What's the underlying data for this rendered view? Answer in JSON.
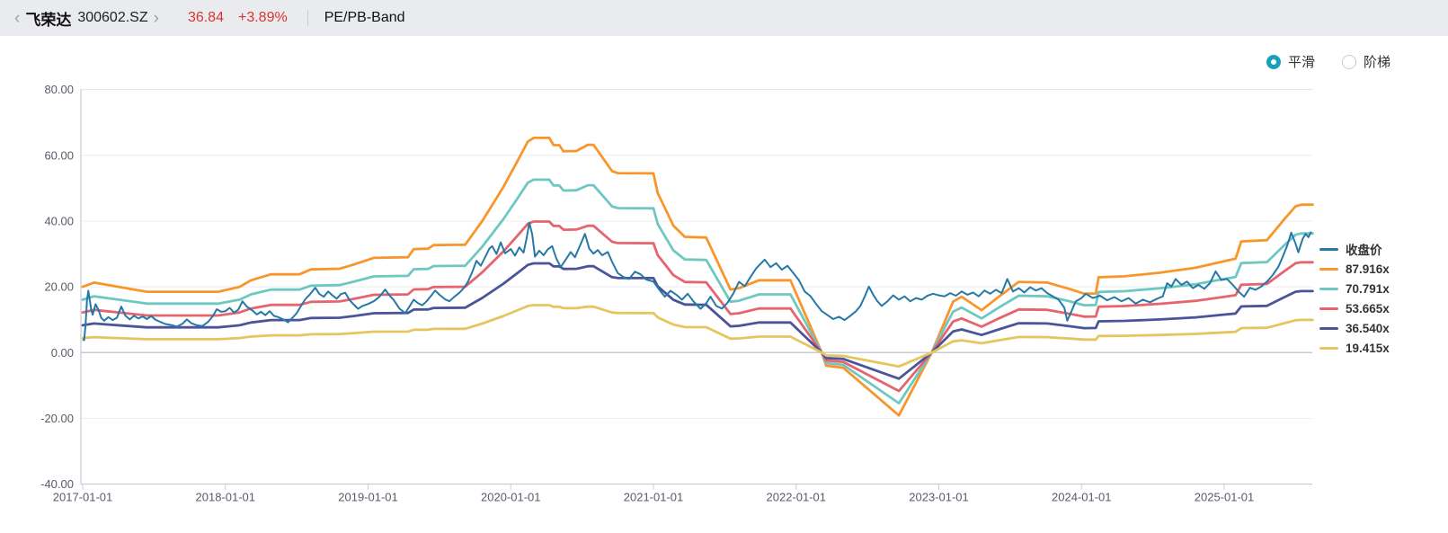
{
  "header": {
    "back_chevron": "‹",
    "stock_name": "飞荣达",
    "stock_code": "300602.SZ",
    "forward_chevron": "›",
    "price": "36.84",
    "change": "+3.89%",
    "view_title": "PE/PB-Band"
  },
  "controls": {
    "accent_color": "#17a2b8",
    "options": [
      {
        "label": "平滑",
        "selected": true
      },
      {
        "label": "阶梯",
        "selected": false
      }
    ]
  },
  "chart_data": {
    "type": "line",
    "title": "PE/PB-Band",
    "grid": true,
    "legend_position": "right",
    "x_axis": {
      "ticks": [
        "2017-01-01",
        "2018-01-01",
        "2019-01-01",
        "2020-01-01",
        "2021-01-01",
        "2022-01-01",
        "2023-01-01",
        "2024-01-01",
        "2025-01-01"
      ],
      "range_years": [
        2017.0,
        2025.65
      ]
    },
    "y_axis": {
      "tick_labels": [
        "80.00",
        "60.00",
        "40.00",
        "20.00",
        "0.00",
        "-20.00",
        "-40.00"
      ],
      "tick_values": [
        80,
        60,
        40,
        20,
        0,
        -20,
        -40
      ],
      "range": [
        -40,
        80
      ]
    },
    "legend": [
      {
        "label": "收盘价",
        "color": "#2679a6"
      },
      {
        "label": "87.916x",
        "color": "#f9962b"
      },
      {
        "label": "70.791x",
        "color": "#6ec8c2"
      },
      {
        "label": "53.665x",
        "color": "#e5646e"
      },
      {
        "label": "36.540x",
        "color": "#4a5499"
      },
      {
        "label": "19.415x",
        "color": "#e5c65e"
      }
    ],
    "pe_bands": {
      "proportional_to_top": true,
      "multiples": [
        87.916,
        70.791,
        53.665,
        36.54,
        19.415
      ],
      "colors": [
        "#f9962b",
        "#6ec8c2",
        "#e5646e",
        "#4a5499",
        "#e5c65e"
      ],
      "top_band_points": [
        [
          2017.0,
          20.0
        ],
        [
          2017.08,
          21.3
        ],
        [
          2017.17,
          20.6
        ],
        [
          2017.45,
          18.5
        ],
        [
          2017.95,
          18.5
        ],
        [
          2018.1,
          20.0
        ],
        [
          2018.18,
          22.0
        ],
        [
          2018.32,
          23.8
        ],
        [
          2018.52,
          23.8
        ],
        [
          2018.6,
          25.3
        ],
        [
          2018.8,
          25.5
        ],
        [
          2018.9,
          26.8
        ],
        [
          2019.04,
          28.8
        ],
        [
          2019.28,
          29.0
        ],
        [
          2019.32,
          31.5
        ],
        [
          2019.42,
          31.6
        ],
        [
          2019.46,
          32.7
        ],
        [
          2019.68,
          32.8
        ],
        [
          2019.8,
          40.0
        ],
        [
          2019.95,
          50.5
        ],
        [
          2020.05,
          58.5
        ],
        [
          2020.12,
          64.2
        ],
        [
          2020.16,
          65.3
        ],
        [
          2020.27,
          65.3
        ],
        [
          2020.3,
          63.1
        ],
        [
          2020.34,
          63.1
        ],
        [
          2020.37,
          61.2
        ],
        [
          2020.46,
          61.3
        ],
        [
          2020.54,
          63.2
        ],
        [
          2020.58,
          63.2
        ],
        [
          2020.71,
          55.2
        ],
        [
          2020.75,
          54.6
        ],
        [
          2021.0,
          54.5
        ],
        [
          2021.03,
          48.5
        ],
        [
          2021.08,
          44.0
        ],
        [
          2021.14,
          38.6
        ],
        [
          2021.22,
          35.2
        ],
        [
          2021.37,
          35.0
        ],
        [
          2021.54,
          19.2
        ],
        [
          2021.6,
          19.6
        ],
        [
          2021.74,
          22.0
        ],
        [
          2021.96,
          22.0
        ],
        [
          2022.18,
          0.0
        ],
        [
          2022.21,
          -4.0
        ],
        [
          2022.33,
          -4.6
        ],
        [
          2022.72,
          -19.1
        ],
        [
          2022.95,
          0.0
        ],
        [
          2023.1,
          15.5
        ],
        [
          2023.16,
          17.0
        ],
        [
          2023.3,
          12.9
        ],
        [
          2023.42,
          17.0
        ],
        [
          2023.56,
          21.5
        ],
        [
          2023.76,
          21.3
        ],
        [
          2023.92,
          19.3
        ],
        [
          2024.02,
          17.9
        ],
        [
          2024.1,
          18.0
        ],
        [
          2024.12,
          22.9
        ],
        [
          2024.3,
          23.2
        ],
        [
          2024.55,
          24.3
        ],
        [
          2024.8,
          25.8
        ],
        [
          2025.0,
          27.8
        ],
        [
          2025.08,
          28.6
        ],
        [
          2025.12,
          33.8
        ],
        [
          2025.3,
          34.2
        ],
        [
          2025.42,
          40.5
        ],
        [
          2025.5,
          44.5
        ],
        [
          2025.54,
          45.0
        ],
        [
          2025.62,
          45.0
        ]
      ]
    },
    "price_series": {
      "name": "收盘价",
      "color": "#2679a6",
      "last_price": 36.84,
      "points": [
        [
          2017.0,
          4.0
        ],
        [
          2017.01,
          3.8
        ],
        [
          2017.02,
          8.5
        ],
        [
          2017.03,
          16.0
        ],
        [
          2017.04,
          18.8
        ],
        [
          2017.06,
          13.0
        ],
        [
          2017.07,
          11.5
        ],
        [
          2017.09,
          14.7
        ],
        [
          2017.11,
          13.0
        ],
        [
          2017.13,
          10.6
        ],
        [
          2017.15,
          9.7
        ],
        [
          2017.18,
          10.8
        ],
        [
          2017.21,
          9.9
        ],
        [
          2017.24,
          10.6
        ],
        [
          2017.27,
          14.0
        ],
        [
          2017.3,
          11.2
        ],
        [
          2017.33,
          10.1
        ],
        [
          2017.36,
          11.2
        ],
        [
          2017.39,
          10.4
        ],
        [
          2017.42,
          11.0
        ],
        [
          2017.45,
          10.2
        ],
        [
          2017.48,
          11.1
        ],
        [
          2017.51,
          10.0
        ],
        [
          2017.54,
          9.4
        ],
        [
          2017.58,
          8.7
        ],
        [
          2017.62,
          8.4
        ],
        [
          2017.66,
          7.9
        ],
        [
          2017.7,
          8.8
        ],
        [
          2017.73,
          10.1
        ],
        [
          2017.76,
          9.0
        ],
        [
          2017.8,
          8.3
        ],
        [
          2017.84,
          8.1
        ],
        [
          2017.88,
          9.4
        ],
        [
          2017.91,
          11.0
        ],
        [
          2017.94,
          13.2
        ],
        [
          2017.97,
          12.4
        ],
        [
          2018.0,
          12.6
        ],
        [
          2018.03,
          13.6
        ],
        [
          2018.06,
          12.2
        ],
        [
          2018.09,
          13.0
        ],
        [
          2018.12,
          15.6
        ],
        [
          2018.15,
          14.0
        ],
        [
          2018.19,
          12.8
        ],
        [
          2018.22,
          11.6
        ],
        [
          2018.25,
          12.4
        ],
        [
          2018.28,
          11.4
        ],
        [
          2018.31,
          12.6
        ],
        [
          2018.34,
          11.2
        ],
        [
          2018.37,
          10.8
        ],
        [
          2018.41,
          10.0
        ],
        [
          2018.44,
          9.2
        ],
        [
          2018.47,
          10.6
        ],
        [
          2018.5,
          12.0
        ],
        [
          2018.53,
          14.2
        ],
        [
          2018.56,
          16.2
        ],
        [
          2018.59,
          17.6
        ],
        [
          2018.63,
          19.7
        ],
        [
          2018.66,
          17.8
        ],
        [
          2018.69,
          17.0
        ],
        [
          2018.72,
          18.6
        ],
        [
          2018.75,
          17.4
        ],
        [
          2018.78,
          16.4
        ],
        [
          2018.81,
          17.8
        ],
        [
          2018.84,
          18.2
        ],
        [
          2018.87,
          16.0
        ],
        [
          2018.9,
          14.6
        ],
        [
          2018.93,
          13.3
        ],
        [
          2018.96,
          14.2
        ],
        [
          2019.0,
          14.8
        ],
        [
          2019.04,
          15.6
        ],
        [
          2019.08,
          17.0
        ],
        [
          2019.12,
          19.2
        ],
        [
          2019.15,
          17.4
        ],
        [
          2019.18,
          16.0
        ],
        [
          2019.22,
          13.4
        ],
        [
          2019.26,
          12.0
        ],
        [
          2019.29,
          14.0
        ],
        [
          2019.32,
          16.1
        ],
        [
          2019.35,
          15.0
        ],
        [
          2019.38,
          14.4
        ],
        [
          2019.41,
          15.6
        ],
        [
          2019.44,
          17.2
        ],
        [
          2019.47,
          18.9
        ],
        [
          2019.5,
          17.6
        ],
        [
          2019.54,
          16.2
        ],
        [
          2019.57,
          15.6
        ],
        [
          2019.6,
          16.8
        ],
        [
          2019.64,
          18.2
        ],
        [
          2019.67,
          19.6
        ],
        [
          2019.7,
          21.5
        ],
        [
          2019.73,
          24.5
        ],
        [
          2019.76,
          27.9
        ],
        [
          2019.79,
          26.4
        ],
        [
          2019.82,
          29.0
        ],
        [
          2019.85,
          31.6
        ],
        [
          2019.87,
          32.4
        ],
        [
          2019.9,
          30.0
        ],
        [
          2019.93,
          33.5
        ],
        [
          2019.96,
          30.2
        ],
        [
          2020.0,
          31.5
        ],
        [
          2020.03,
          29.5
        ],
        [
          2020.06,
          32.0
        ],
        [
          2020.09,
          30.4
        ],
        [
          2020.11,
          34.5
        ],
        [
          2020.13,
          39.5
        ],
        [
          2020.15,
          36.0
        ],
        [
          2020.17,
          29.2
        ],
        [
          2020.2,
          31.0
        ],
        [
          2020.23,
          29.6
        ],
        [
          2020.26,
          31.4
        ],
        [
          2020.29,
          32.4
        ],
        [
          2020.32,
          28.6
        ],
        [
          2020.35,
          26.0
        ],
        [
          2020.39,
          28.6
        ],
        [
          2020.42,
          30.6
        ],
        [
          2020.45,
          29.0
        ],
        [
          2020.49,
          33.0
        ],
        [
          2020.52,
          36.1
        ],
        [
          2020.55,
          31.6
        ],
        [
          2020.58,
          30.1
        ],
        [
          2020.61,
          31.2
        ],
        [
          2020.64,
          29.6
        ],
        [
          2020.68,
          30.6
        ],
        [
          2020.71,
          27.6
        ],
        [
          2020.75,
          24.2
        ],
        [
          2020.79,
          23.0
        ],
        [
          2020.83,
          22.4
        ],
        [
          2020.87,
          24.6
        ],
        [
          2020.91,
          23.8
        ],
        [
          2020.95,
          22.2
        ],
        [
          2021.0,
          21.6
        ],
        [
          2021.04,
          19.2
        ],
        [
          2021.08,
          17.0
        ],
        [
          2021.12,
          18.8
        ],
        [
          2021.16,
          17.6
        ],
        [
          2021.2,
          16.1
        ],
        [
          2021.24,
          17.9
        ],
        [
          2021.28,
          15.6
        ],
        [
          2021.33,
          13.3
        ],
        [
          2021.37,
          15.0
        ],
        [
          2021.4,
          17.0
        ],
        [
          2021.44,
          14.2
        ],
        [
          2021.48,
          13.4
        ],
        [
          2021.52,
          15.2
        ],
        [
          2021.56,
          18.0
        ],
        [
          2021.6,
          21.5
        ],
        [
          2021.64,
          20.2
        ],
        [
          2021.68,
          23.0
        ],
        [
          2021.72,
          25.6
        ],
        [
          2021.78,
          28.3
        ],
        [
          2021.82,
          26.0
        ],
        [
          2021.86,
          27.2
        ],
        [
          2021.9,
          25.2
        ],
        [
          2021.94,
          26.4
        ],
        [
          2021.98,
          24.2
        ],
        [
          2022.02,
          22.0
        ],
        [
          2022.06,
          18.6
        ],
        [
          2022.1,
          17.2
        ],
        [
          2022.14,
          14.8
        ],
        [
          2022.18,
          12.6
        ],
        [
          2022.22,
          11.4
        ],
        [
          2022.26,
          10.2
        ],
        [
          2022.3,
          10.9
        ],
        [
          2022.34,
          9.9
        ],
        [
          2022.38,
          11.2
        ],
        [
          2022.42,
          12.6
        ],
        [
          2022.45,
          14.2
        ],
        [
          2022.48,
          17.0
        ],
        [
          2022.51,
          20.1
        ],
        [
          2022.54,
          17.6
        ],
        [
          2022.57,
          15.6
        ],
        [
          2022.6,
          14.2
        ],
        [
          2022.64,
          15.6
        ],
        [
          2022.68,
          17.4
        ],
        [
          2022.72,
          16.1
        ],
        [
          2022.76,
          17.1
        ],
        [
          2022.8,
          15.6
        ],
        [
          2022.84,
          16.6
        ],
        [
          2022.88,
          16.1
        ],
        [
          2022.92,
          17.3
        ],
        [
          2022.96,
          17.9
        ],
        [
          2023.0,
          17.4
        ],
        [
          2023.04,
          17.1
        ],
        [
          2023.08,
          18.1
        ],
        [
          2023.12,
          17.3
        ],
        [
          2023.16,
          18.6
        ],
        [
          2023.2,
          17.6
        ],
        [
          2023.24,
          18.3
        ],
        [
          2023.28,
          17.1
        ],
        [
          2023.32,
          18.9
        ],
        [
          2023.36,
          17.9
        ],
        [
          2023.4,
          19.1
        ],
        [
          2023.44,
          18.1
        ],
        [
          2023.48,
          22.4
        ],
        [
          2023.52,
          18.6
        ],
        [
          2023.56,
          19.6
        ],
        [
          2023.6,
          18.3
        ],
        [
          2023.64,
          19.9
        ],
        [
          2023.68,
          18.9
        ],
        [
          2023.72,
          19.6
        ],
        [
          2023.76,
          18.1
        ],
        [
          2023.8,
          17.1
        ],
        [
          2023.84,
          16.1
        ],
        [
          2023.88,
          13.6
        ],
        [
          2023.9,
          9.7
        ],
        [
          2023.93,
          12.6
        ],
        [
          2023.96,
          15.6
        ],
        [
          2024.0,
          16.6
        ],
        [
          2024.03,
          17.9
        ],
        [
          2024.08,
          16.6
        ],
        [
          2024.13,
          17.3
        ],
        [
          2024.18,
          15.9
        ],
        [
          2024.23,
          16.9
        ],
        [
          2024.28,
          15.6
        ],
        [
          2024.33,
          16.6
        ],
        [
          2024.38,
          14.9
        ],
        [
          2024.43,
          16.1
        ],
        [
          2024.48,
          15.3
        ],
        [
          2024.53,
          16.4
        ],
        [
          2024.57,
          17.1
        ],
        [
          2024.6,
          21.1
        ],
        [
          2024.63,
          20.1
        ],
        [
          2024.66,
          22.4
        ],
        [
          2024.7,
          20.6
        ],
        [
          2024.74,
          21.6
        ],
        [
          2024.78,
          19.6
        ],
        [
          2024.82,
          20.6
        ],
        [
          2024.86,
          19.4
        ],
        [
          2024.9,
          21.1
        ],
        [
          2024.94,
          24.7
        ],
        [
          2024.98,
          22.1
        ],
        [
          2025.02,
          22.4
        ],
        [
          2025.06,
          20.6
        ],
        [
          2025.1,
          18.6
        ],
        [
          2025.14,
          17.0
        ],
        [
          2025.18,
          19.7
        ],
        [
          2025.22,
          19.1
        ],
        [
          2025.26,
          20.1
        ],
        [
          2025.3,
          21.6
        ],
        [
          2025.34,
          23.6
        ],
        [
          2025.38,
          26.1
        ],
        [
          2025.41,
          29.1
        ],
        [
          2025.44,
          32.4
        ],
        [
          2025.47,
          36.5
        ],
        [
          2025.5,
          33.1
        ],
        [
          2025.52,
          30.5
        ],
        [
          2025.55,
          34.6
        ],
        [
          2025.57,
          36.1
        ],
        [
          2025.59,
          35.1
        ],
        [
          2025.61,
          36.8
        ]
      ]
    }
  }
}
